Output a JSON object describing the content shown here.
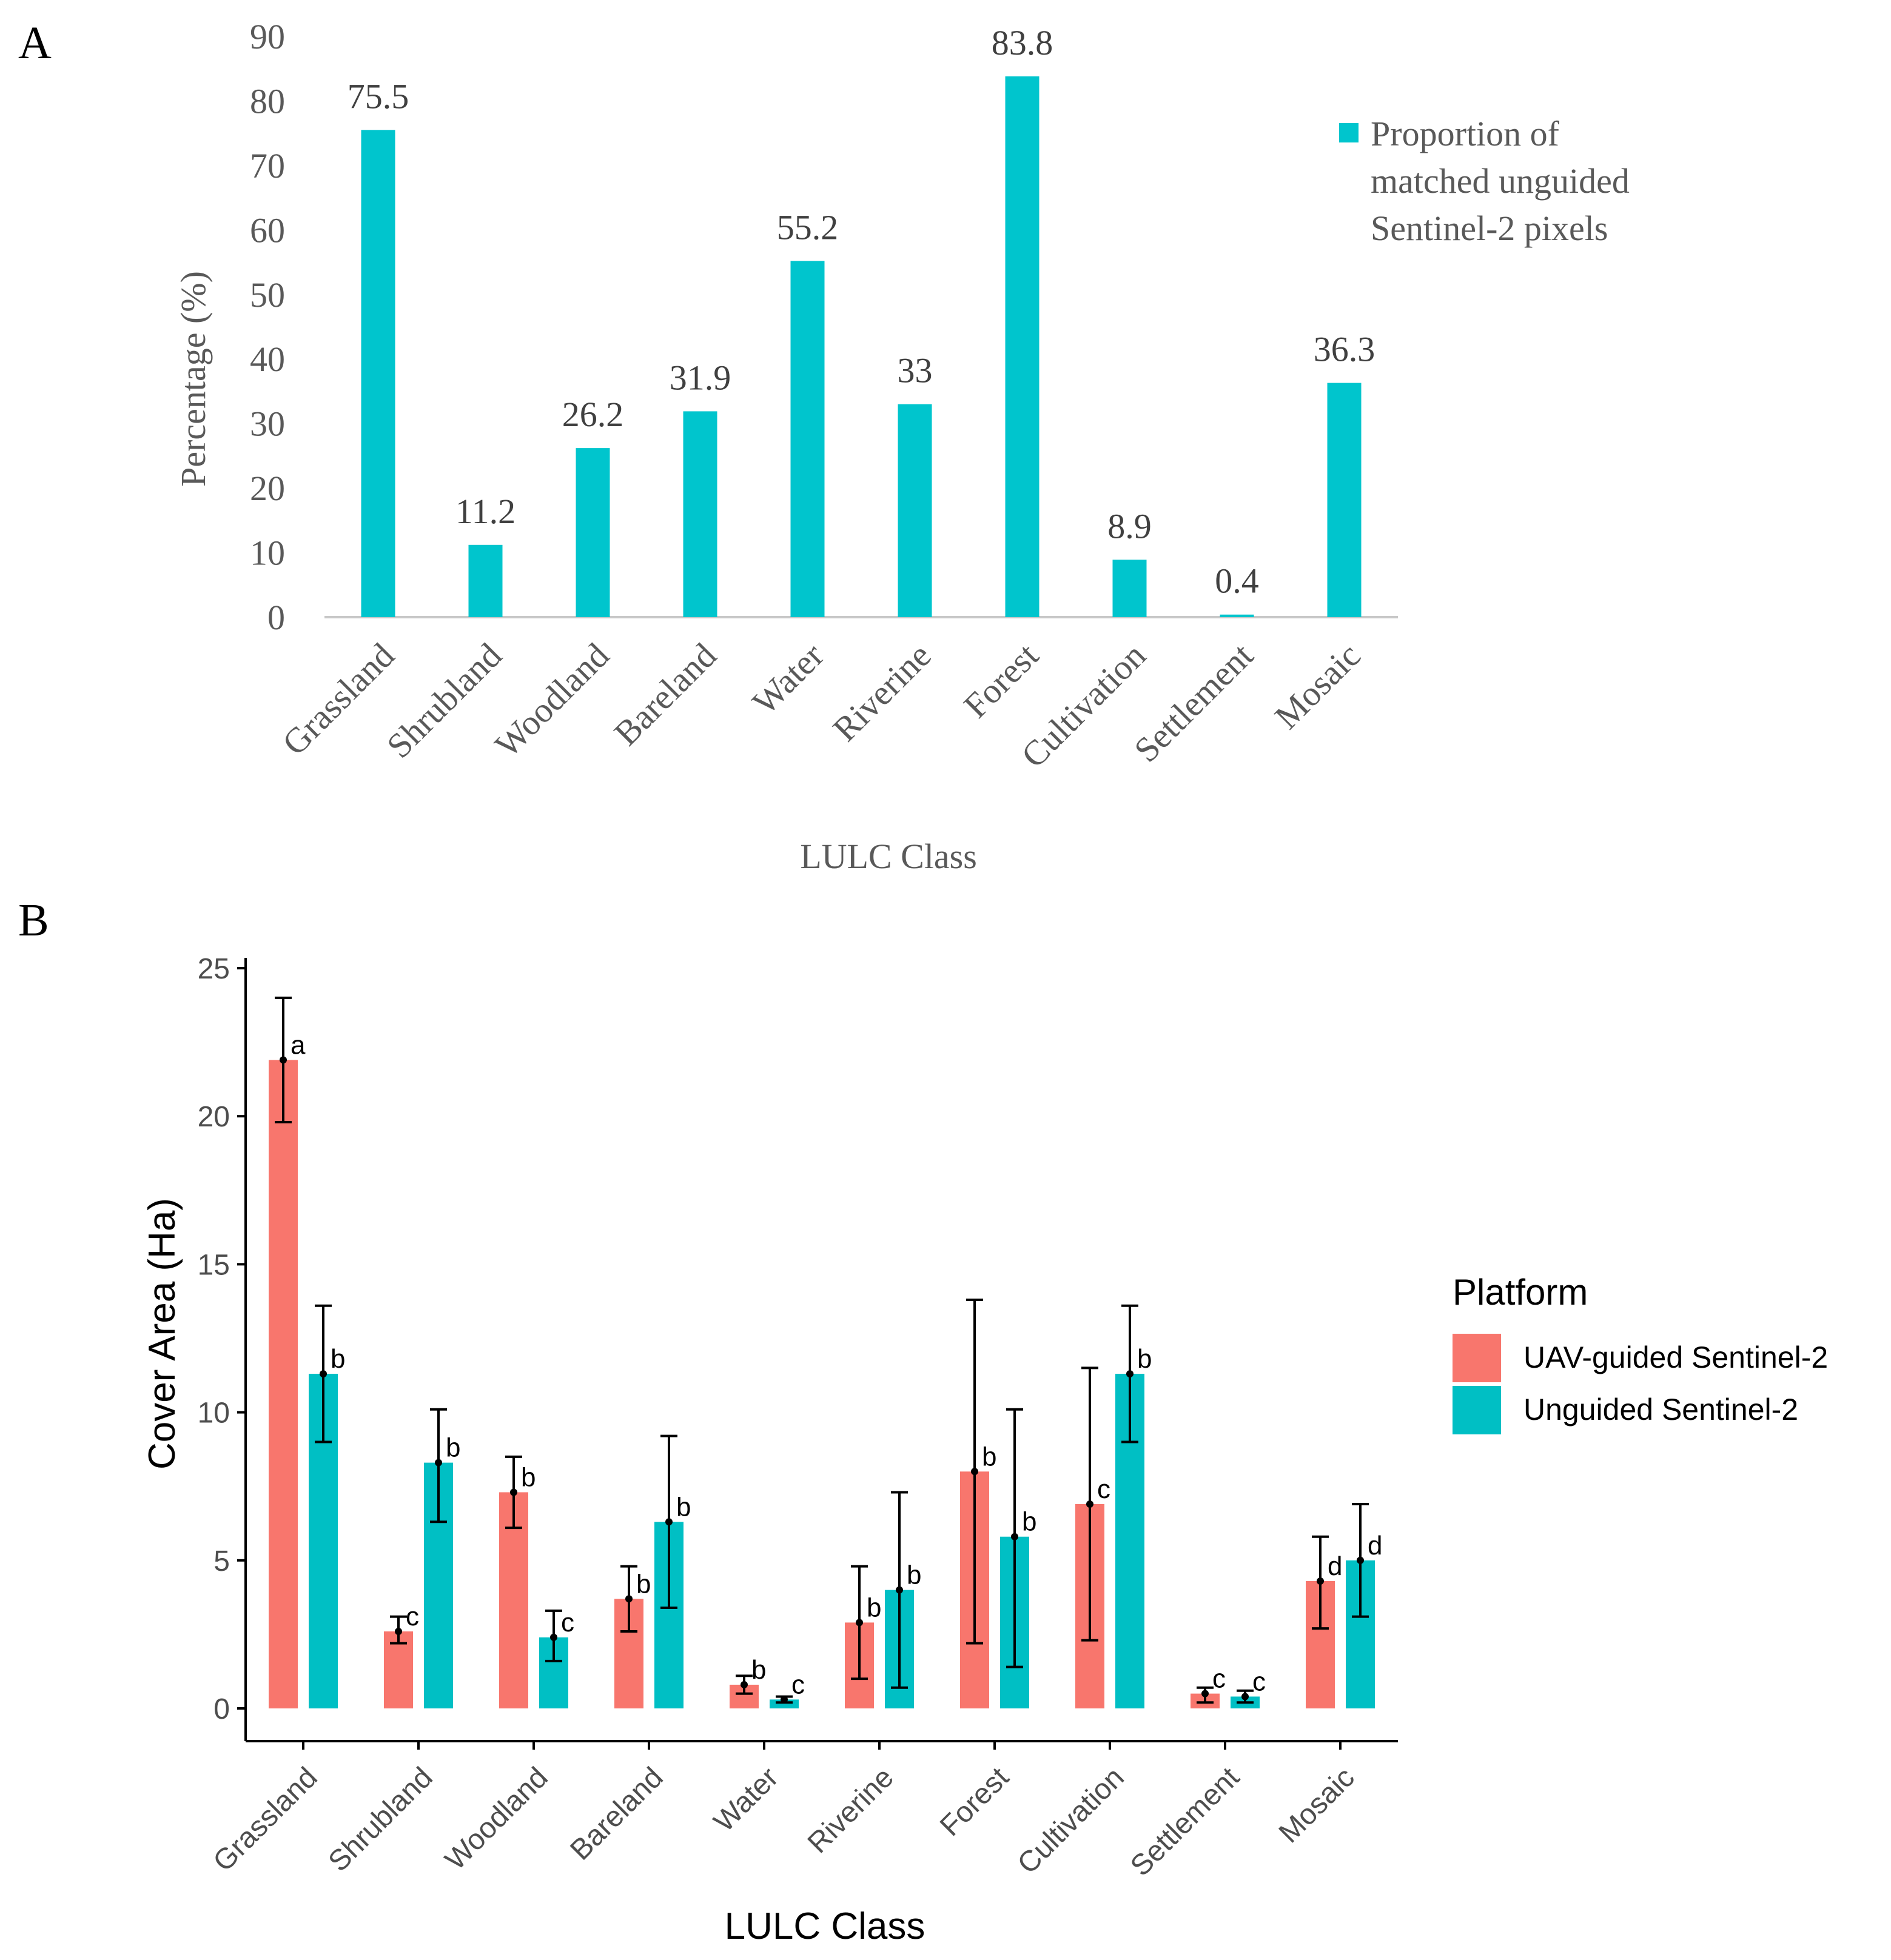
{
  "panel_labels": [
    "A",
    "B"
  ],
  "chart_data": [
    {
      "type": "bar",
      "panel": "A",
      "title": "",
      "xlabel": "LULC Class",
      "ylabel": "Percentage (%)",
      "ylim": [
        0,
        90
      ],
      "yticks": [
        0,
        10,
        20,
        30,
        40,
        50,
        60,
        70,
        80,
        90
      ],
      "grid": false,
      "legend_position": "right",
      "categories": [
        "Grassland",
        "Shrubland",
        "Woodland",
        "Bareland",
        "Water",
        "Riverine",
        "Forest",
        "Cultivation",
        "Settlement",
        "Mosaic"
      ],
      "series": [
        {
          "name": "Proportion of matched unguided Sentinel-2 pixels",
          "legend_lines": [
            "Proportion of",
            "matched unguided",
            "Sentinel-2 pixels"
          ],
          "color": "#00C5CD",
          "values": [
            75.5,
            11.2,
            26.2,
            31.9,
            55.2,
            33,
            83.8,
            8.9,
            0.4,
            36.3
          ],
          "labels": [
            "75.5",
            "11.2",
            "26.2",
            "31.9",
            "55.2",
            "33",
            "83.8",
            "8.9",
            "0.4",
            "36.3"
          ]
        }
      ]
    },
    {
      "type": "bar",
      "panel": "B",
      "title": "",
      "xlabel": "LULC Class",
      "ylabel": "Cover Area (Ha)",
      "ylim": [
        0,
        25
      ],
      "yticks": [
        0,
        5,
        10,
        15,
        20,
        25
      ],
      "grid": false,
      "legend_title": "Platform",
      "legend_position": "right",
      "categories": [
        "Grassland",
        "Shrubland",
        "Woodland",
        "Bareland",
        "Water",
        "Riverine",
        "Forest",
        "Cultivation",
        "Settlement",
        "Mosaic"
      ],
      "series": [
        {
          "name": "UAV-guided Sentinel-2",
          "color": "#F8766D",
          "values": [
            21.9,
            2.6,
            7.3,
            3.7,
            0.8,
            2.9,
            8.0,
            6.9,
            0.5,
            4.3
          ],
          "err_low": [
            19.8,
            2.2,
            6.1,
            2.6,
            0.5,
            1.0,
            2.2,
            2.3,
            0.2,
            2.7
          ],
          "err_high": [
            24.0,
            3.1,
            8.5,
            4.8,
            1.1,
            4.8,
            13.8,
            11.5,
            0.7,
            5.8
          ],
          "letters": [
            "a",
            "c",
            "b",
            "b",
            "b",
            "b",
            "b",
            "c",
            "c",
            "d"
          ]
        },
        {
          "name": "Unguided Sentinel-2",
          "color": "#00BFC4",
          "values": [
            11.3,
            8.3,
            2.4,
            6.3,
            0.3,
            4.0,
            5.8,
            11.3,
            0.4,
            5.0
          ],
          "err_low": [
            9.0,
            6.3,
            1.6,
            3.4,
            0.2,
            0.7,
            1.4,
            9.0,
            0.2,
            3.1
          ],
          "err_high": [
            13.6,
            10.1,
            3.3,
            9.2,
            0.4,
            7.3,
            10.1,
            13.6,
            0.6,
            6.9
          ],
          "letters": [
            "b",
            "b",
            "c",
            "b",
            "c",
            "b",
            "b",
            "b",
            "c",
            "d"
          ]
        }
      ]
    }
  ]
}
